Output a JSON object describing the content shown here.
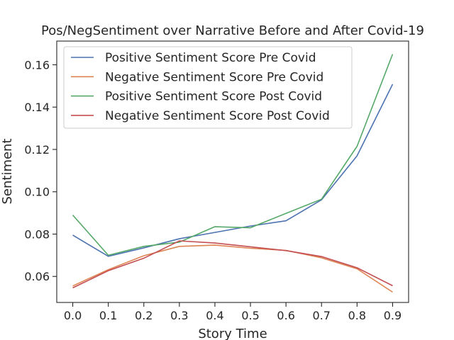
{
  "chart_data": {
    "type": "line",
    "title": "Pos/NegSentiment over Narrative Before and After Covid-19",
    "xlabel": "Story Time",
    "ylabel": "Sentiment",
    "x": [
      0.0,
      0.1,
      0.2,
      0.3,
      0.4,
      0.5,
      0.6,
      0.7,
      0.8,
      0.9
    ],
    "xlim": [
      -0.045,
      0.945
    ],
    "ylim": [
      0.0477,
      0.1712
    ],
    "xticks": [
      0.0,
      0.1,
      0.2,
      0.3,
      0.4,
      0.5,
      0.6,
      0.7,
      0.8,
      0.9
    ],
    "xtick_labels": [
      "0.0",
      "0.1",
      "0.2",
      "0.3",
      "0.4",
      "0.5",
      "0.6",
      "0.7",
      "0.8",
      "0.9"
    ],
    "yticks": [
      0.06,
      0.08,
      0.1,
      0.12,
      0.14,
      0.16
    ],
    "ytick_labels": [
      "0.06",
      "0.08",
      "0.10",
      "0.12",
      "0.14",
      "0.16"
    ],
    "grid": false,
    "legend_position": "top-left",
    "series": [
      {
        "name": "Positive Sentiment Score Pre Covid",
        "color": "#4c72b0",
        "values": [
          0.0795,
          0.0695,
          0.0735,
          0.0778,
          0.0808,
          0.0838,
          0.0863,
          0.0962,
          0.117,
          0.1508
        ]
      },
      {
        "name": "Negative Sentiment Score Pre Covid",
        "color": "#dd8452",
        "values": [
          0.0555,
          0.0632,
          0.0698,
          0.0742,
          0.0748,
          0.0733,
          0.0723,
          0.0688,
          0.0636,
          0.0526
        ]
      },
      {
        "name": "Positive Sentiment Score Post Covid",
        "color": "#55a868",
        "values": [
          0.089,
          0.07,
          0.0742,
          0.0762,
          0.0835,
          0.083,
          0.0898,
          0.0965,
          0.1215,
          0.165
        ]
      },
      {
        "name": "Negative Sentiment Score Post Covid",
        "color": "#c44e52",
        "values": [
          0.0546,
          0.0627,
          0.0686,
          0.0768,
          0.0758,
          0.074,
          0.0722,
          0.0694,
          0.0641,
          0.0556
        ]
      }
    ]
  }
}
